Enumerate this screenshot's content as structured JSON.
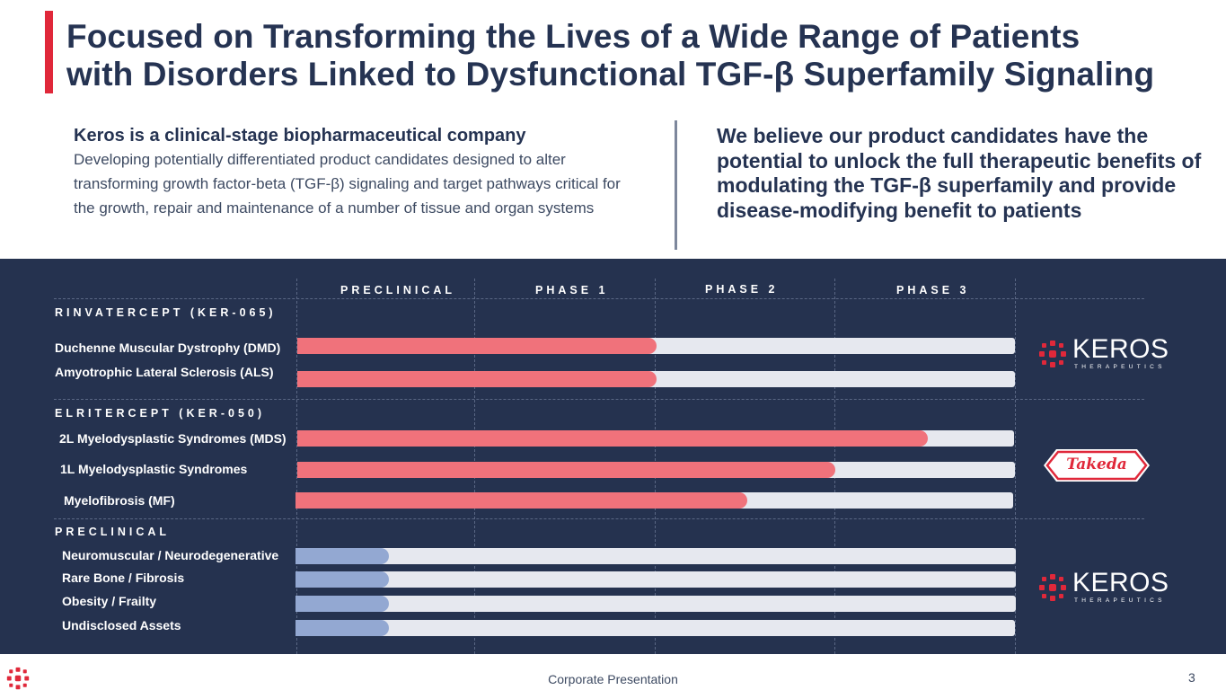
{
  "header": {
    "title_line1": "Focused on Transforming the Lives of a Wide Range of Patients",
    "title_line2": "with Disorders Linked to Dysfunctional TGF-β Superfamily Signaling",
    "accent_color": "#e0283a"
  },
  "intro": {
    "left_heading": "Keros is a clinical-stage biopharmaceutical company",
    "left_body": "Developing potentially differentiated product candidates designed to alter transforming growth factor-beta (TGF-β) signaling and target pathways critical for the growth, repair and maintenance of a number of tissue and organ systems",
    "right_statement": "We believe our product candidates have the potential to unlock the full therapeutic benefits of modulating the TGF-β superfamily and provide disease-modifying benefit to patients"
  },
  "pipeline": {
    "background": "#25324f",
    "phases": [
      "PRECLINICAL",
      "PHASE 1",
      "PHASE 2",
      "PHASE 3"
    ],
    "programs": [
      {
        "name": "RINVATERCEPT (KER-065)",
        "partner": "KEROS",
        "partner_sub": "THERAPEUTICS",
        "indications": [
          {
            "label": "Duchenne Muscular Dystrophy (DMD)",
            "progress": 0.5
          },
          {
            "label": "Amyotrophic Lateral Sclerosis (ALS)",
            "progress": 0.5
          }
        ]
      },
      {
        "name": "ELRITERCEPT (KER-050)",
        "partner": "Takeda",
        "indications": [
          {
            "label": "2L Myelodysplastic Syndromes (MDS)",
            "progress": 0.88
          },
          {
            "label": "1L Myelodysplastic Syndromes",
            "progress": 0.75
          },
          {
            "label": "Myelofibrosis (MF)",
            "progress": 0.63
          }
        ]
      },
      {
        "name": "PRECLINICAL",
        "partner": "KEROS",
        "partner_sub": "THERAPEUTICS",
        "indications": [
          {
            "label": "Neuromuscular / Neurodegenerative",
            "progress": 0.13
          },
          {
            "label": "Rare Bone / Fibrosis",
            "progress": 0.13
          },
          {
            "label": "Obesity / Frailty",
            "progress": 0.13
          },
          {
            "label": "Undisclosed Assets",
            "progress": 0.13
          }
        ]
      }
    ],
    "colors": {
      "clinical_fill": "#f0727b",
      "preclinical_fill": "#93a8d2",
      "track": "#e6e8ef"
    }
  },
  "footer": {
    "text": "Corporate Presentation",
    "page_number": "3"
  }
}
